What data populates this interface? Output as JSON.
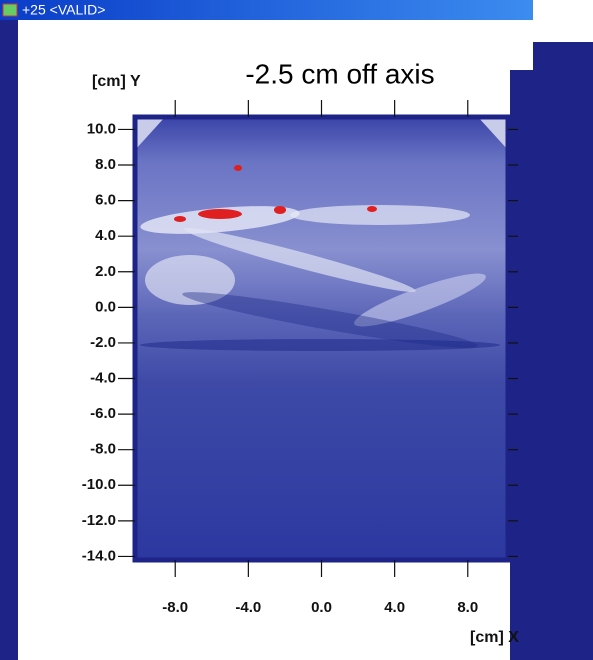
{
  "window": {
    "title": "+25 <VALID>"
  },
  "chart_data": {
    "type": "heatmap",
    "title": "-2.5 cm off axis",
    "xlabel": "[cm] X",
    "ylabel": "[cm] Y",
    "xlim": [
      -10.2,
      10.2
    ],
    "ylim": [
      -14.2,
      10.7
    ],
    "xticks": [
      {
        "value": -8,
        "label": "-8.0"
      },
      {
        "value": -4,
        "label": "-4.0"
      },
      {
        "value": 0,
        "label": "0.0"
      },
      {
        "value": 4,
        "label": "4.0"
      },
      {
        "value": 8,
        "label": "8.0"
      }
    ],
    "yticks": [
      {
        "value": 10,
        "label": "10.0"
      },
      {
        "value": 8,
        "label": "8.0"
      },
      {
        "value": 6,
        "label": "6.0"
      },
      {
        "value": 4,
        "label": "4.0"
      },
      {
        "value": 2,
        "label": "2.0"
      },
      {
        "value": 0,
        "label": "0.0"
      },
      {
        "value": -2,
        "label": "-2.0"
      },
      {
        "value": -4,
        "label": "-4.0"
      },
      {
        "value": -6,
        "label": "-6.0"
      },
      {
        "value": -8,
        "label": "-8.0"
      },
      {
        "value": -10,
        "label": "-10.0"
      },
      {
        "value": -12,
        "label": "-12.0"
      },
      {
        "value": -14,
        "label": "-14.0"
      }
    ]
  }
}
